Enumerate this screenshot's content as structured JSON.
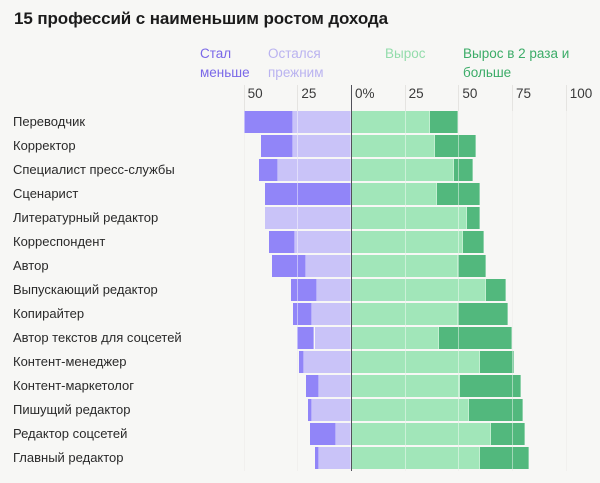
{
  "title": "15 профессий с наименьшим ростом дохода",
  "legend": {
    "items": [
      {
        "label": "Стал меньше",
        "color": "#7a68e8"
      },
      {
        "label": "Остался прежним",
        "color": "#bab3f0"
      },
      {
        "label": "Вырос",
        "color": "#93dcab"
      },
      {
        "label": "Вырос в 2 раза и больше",
        "color": "#3cac68"
      }
    ]
  },
  "axis": {
    "ticks": [
      {
        "label": "50",
        "value": -50
      },
      {
        "label": "25",
        "value": -25
      },
      {
        "label": "0%",
        "value": 0
      },
      {
        "label": "25",
        "value": 25
      },
      {
        "label": "50",
        "value": 50
      },
      {
        "label": "75",
        "value": 75
      },
      {
        "label": "100",
        "value": 100
      }
    ]
  },
  "colors": {
    "background": "#f7f7f5",
    "gridline": "#e5e4e1",
    "zero_line": "#52525a",
    "tick_text": "#3a3a3a",
    "category_text": "#2a2a2a",
    "title_text": "#1b1b1b",
    "declined_bar": "#9185f8",
    "same_bar": "#c9c3f8",
    "grew_bar": "#a1e6b9",
    "grew2x_bar": "#52b87d"
  },
  "chart_data": {
    "type": "bar",
    "orientation": "horizontal",
    "diverging": true,
    "stacked": true,
    "unit": "%",
    "title": "15 профессий с наименьшим ростом дохода",
    "xlim": [
      -55,
      100
    ],
    "x_ticks": [
      -50,
      -25,
      0,
      25,
      50,
      75,
      100
    ],
    "grid": true,
    "legend_position": "top",
    "categories": [
      "Переводчик",
      "Корректор",
      "Специалист пресс-службы",
      "Сценарист",
      "Литературный редактор",
      "Корреспондент",
      "Автор",
      "Выпускающий редактор",
      "Копирайтер",
      "Автор текстов для соцсетей",
      "Контент-менеджер",
      "Контент-маркетолог",
      "Пишущий редактор",
      "Редактор соцсетей",
      "Главный редактор"
    ],
    "series": [
      {
        "name": "Стал меньше",
        "side": "left",
        "color": "#9185f8",
        "values": [
          23,
          15,
          9,
          40,
          0,
          12,
          16,
          12,
          9,
          8,
          2,
          6,
          2,
          12,
          2
        ]
      },
      {
        "name": "Остался прежним",
        "side": "left",
        "color": "#c9c3f8",
        "values": [
          27,
          27,
          34,
          0,
          40,
          26,
          21,
          16,
          18,
          17,
          22,
          15,
          18,
          7,
          15
        ]
      },
      {
        "name": "Вырос",
        "side": "right",
        "color": "#a1e6b9",
        "values": [
          37,
          39,
          48,
          40,
          54,
          52,
          50,
          63,
          50,
          41,
          60,
          51,
          55,
          65,
          60
        ]
      },
      {
        "name": "Вырос в 2 раза и больше",
        "side": "right",
        "color": "#52b87d",
        "values": [
          13,
          19,
          9,
          20,
          6,
          10,
          13,
          9,
          23,
          34,
          16,
          28,
          25,
          16,
          23
        ]
      }
    ]
  }
}
